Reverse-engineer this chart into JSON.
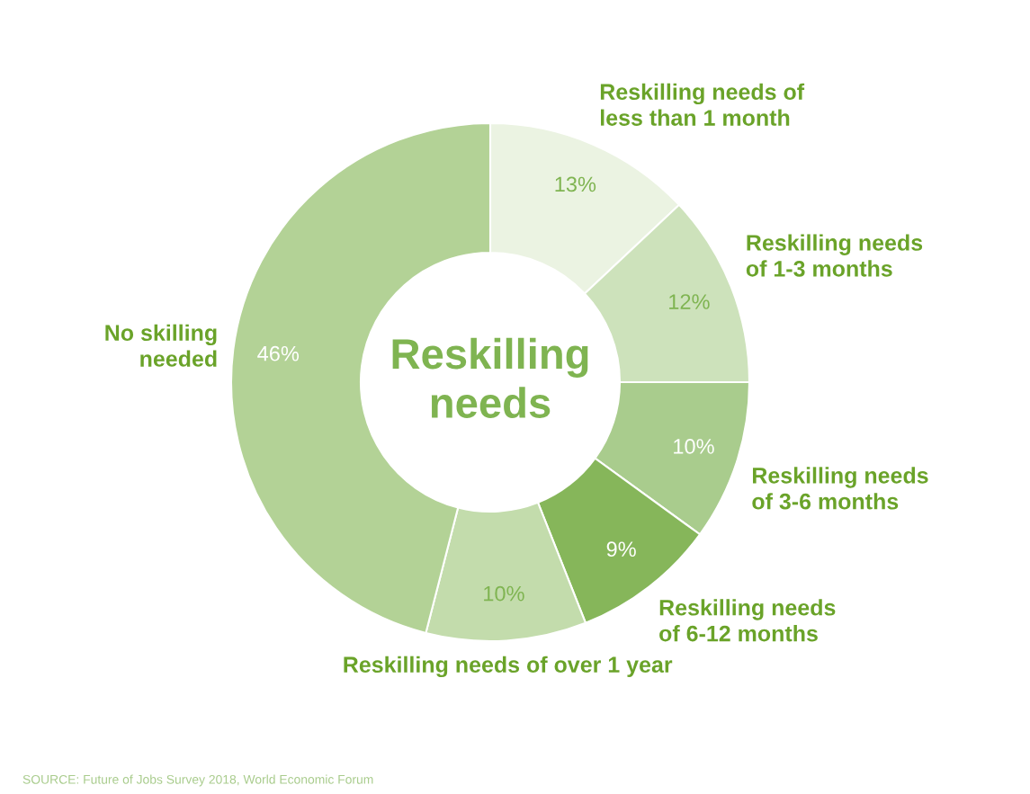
{
  "chart_data": {
    "type": "donut",
    "title": "Reskilling\nneeds",
    "categories": [
      "Reskilling needs of\nless than 1 month",
      "Reskilling needs\nof 1-3 months",
      "Reskilling needs\nof 3-6 months",
      "Reskilling needs\nof 6-12 months",
      "Reskilling needs of over 1 year",
      "No skilling\nneeded"
    ],
    "values": [
      13,
      12,
      10,
      9,
      10,
      46
    ],
    "value_labels": [
      "13%",
      "12%",
      "10%",
      "9%",
      "10%",
      "46%"
    ],
    "colors": [
      "#ebf3e2",
      "#cde2bb",
      "#a9cc8d",
      "#86b65a",
      "#c3dcac",
      "#b3d296"
    ],
    "annotations": [
      "SOURCE: Future of Jobs Survey 2018, World Economic Forum"
    ]
  }
}
